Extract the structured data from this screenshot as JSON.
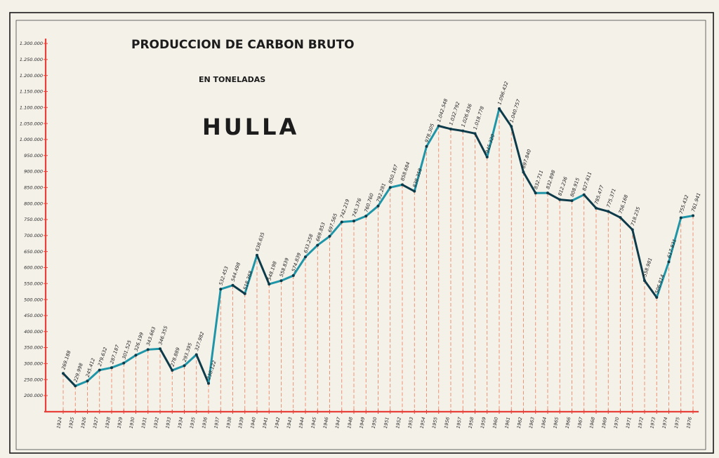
{
  "chart_data": {
    "type": "line",
    "title": "PRODUCCION DE CARBON BRUTO",
    "subtitle": "EN TONELADAS",
    "heading": "HULLA",
    "xlabel": "",
    "ylabel": "",
    "ylim": [
      200000,
      1300000
    ],
    "grid": false,
    "yticks": [
      "200.000",
      "250.000",
      "300.000",
      "350.000",
      "400.000",
      "450.000",
      "500.000",
      "550.000",
      "600.000",
      "650.000",
      "700.000",
      "750.000",
      "800.000",
      "850.000",
      "900.000",
      "950.000",
      "1.000.000",
      "1.050.000",
      "1.100.000",
      "1.150.000",
      "1.200.000",
      "1.250.000",
      "1.300.000"
    ],
    "ytick_values": [
      200000,
      250000,
      300000,
      350000,
      400000,
      450000,
      500000,
      550000,
      600000,
      650000,
      700000,
      750000,
      800000,
      850000,
      900000,
      950000,
      1000000,
      1050000,
      1100000,
      1150000,
      1200000,
      1250000,
      1300000
    ],
    "categories": [
      "1924",
      "1925",
      "1926",
      "1927",
      "1928",
      "1929",
      "1930",
      "1931",
      "1932",
      "1933",
      "1934",
      "1935",
      "1936",
      "1937",
      "1938",
      "1939",
      "1940",
      "1941",
      "1942",
      "1943",
      "1944",
      "1945",
      "1946",
      "1947",
      "1948",
      "1949",
      "1950",
      "1951",
      "1952",
      "1953",
      "1954",
      "1955",
      "1956",
      "1957",
      "1958",
      "1959",
      "1960",
      "1961",
      "1962",
      "1963",
      "1964",
      "1965",
      "1966",
      "1967",
      "1968",
      "1969",
      "1970",
      "1971",
      "1972",
      "1973",
      "1974",
      "1975",
      "1976"
    ],
    "values": [
      269188,
      229998,
      245412,
      279632,
      287187,
      301525,
      326199,
      343663,
      346355,
      278889,
      293395,
      327982,
      238122,
      532453,
      544498,
      518368,
      638635,
      548198,
      558839,
      574839,
      633258,
      669853,
      697565,
      742219,
      745376,
      760760,
      792281,
      850167,
      858684,
      838358,
      978305,
      1042548,
      1032792,
      1026836,
      1018778,
      945320,
      1096432,
      1040757,
      897840,
      832711,
      832898,
      812236,
      808915,
      827611,
      785477,
      775371,
      756168,
      718235,
      558981,
      506814,
      617831,
      755432,
      761941
    ],
    "data_labels": [
      "269.188",
      "229.998",
      "245.412",
      "279.632",
      "287.187",
      "301.525",
      "326.199",
      "343.663",
      "346.355",
      "278.889",
      "293.395",
      "327.982",
      "238.122",
      "532.453",
      "544.498",
      "518.368",
      "638.635",
      "548.198",
      "558.839",
      "574.839",
      "633.258",
      "669.853",
      "697.565",
      "742.219",
      "745.376",
      "760.760",
      "792.281",
      "850.167",
      "858.684",
      "838.358",
      "978.305",
      "1.042.548",
      "1.032.792",
      "1.026.836",
      "1.018.778",
      "945.320",
      "1.096.432",
      "1.040.757",
      "897.840",
      "832.711",
      "832.898",
      "812.236",
      "808.915",
      "827.611",
      "785.477",
      "775.371",
      "756.168",
      "718.235",
      "558.981",
      "506.814",
      "617.831",
      "755.432",
      "761.941"
    ],
    "colors": {
      "axis": "#e8413a",
      "dashes": "#ef7a58",
      "line_dark": "#0d3b4a",
      "line_light": "#1f95a8",
      "frame": "#1a1a1a",
      "paper": "#f4f1e9"
    }
  }
}
